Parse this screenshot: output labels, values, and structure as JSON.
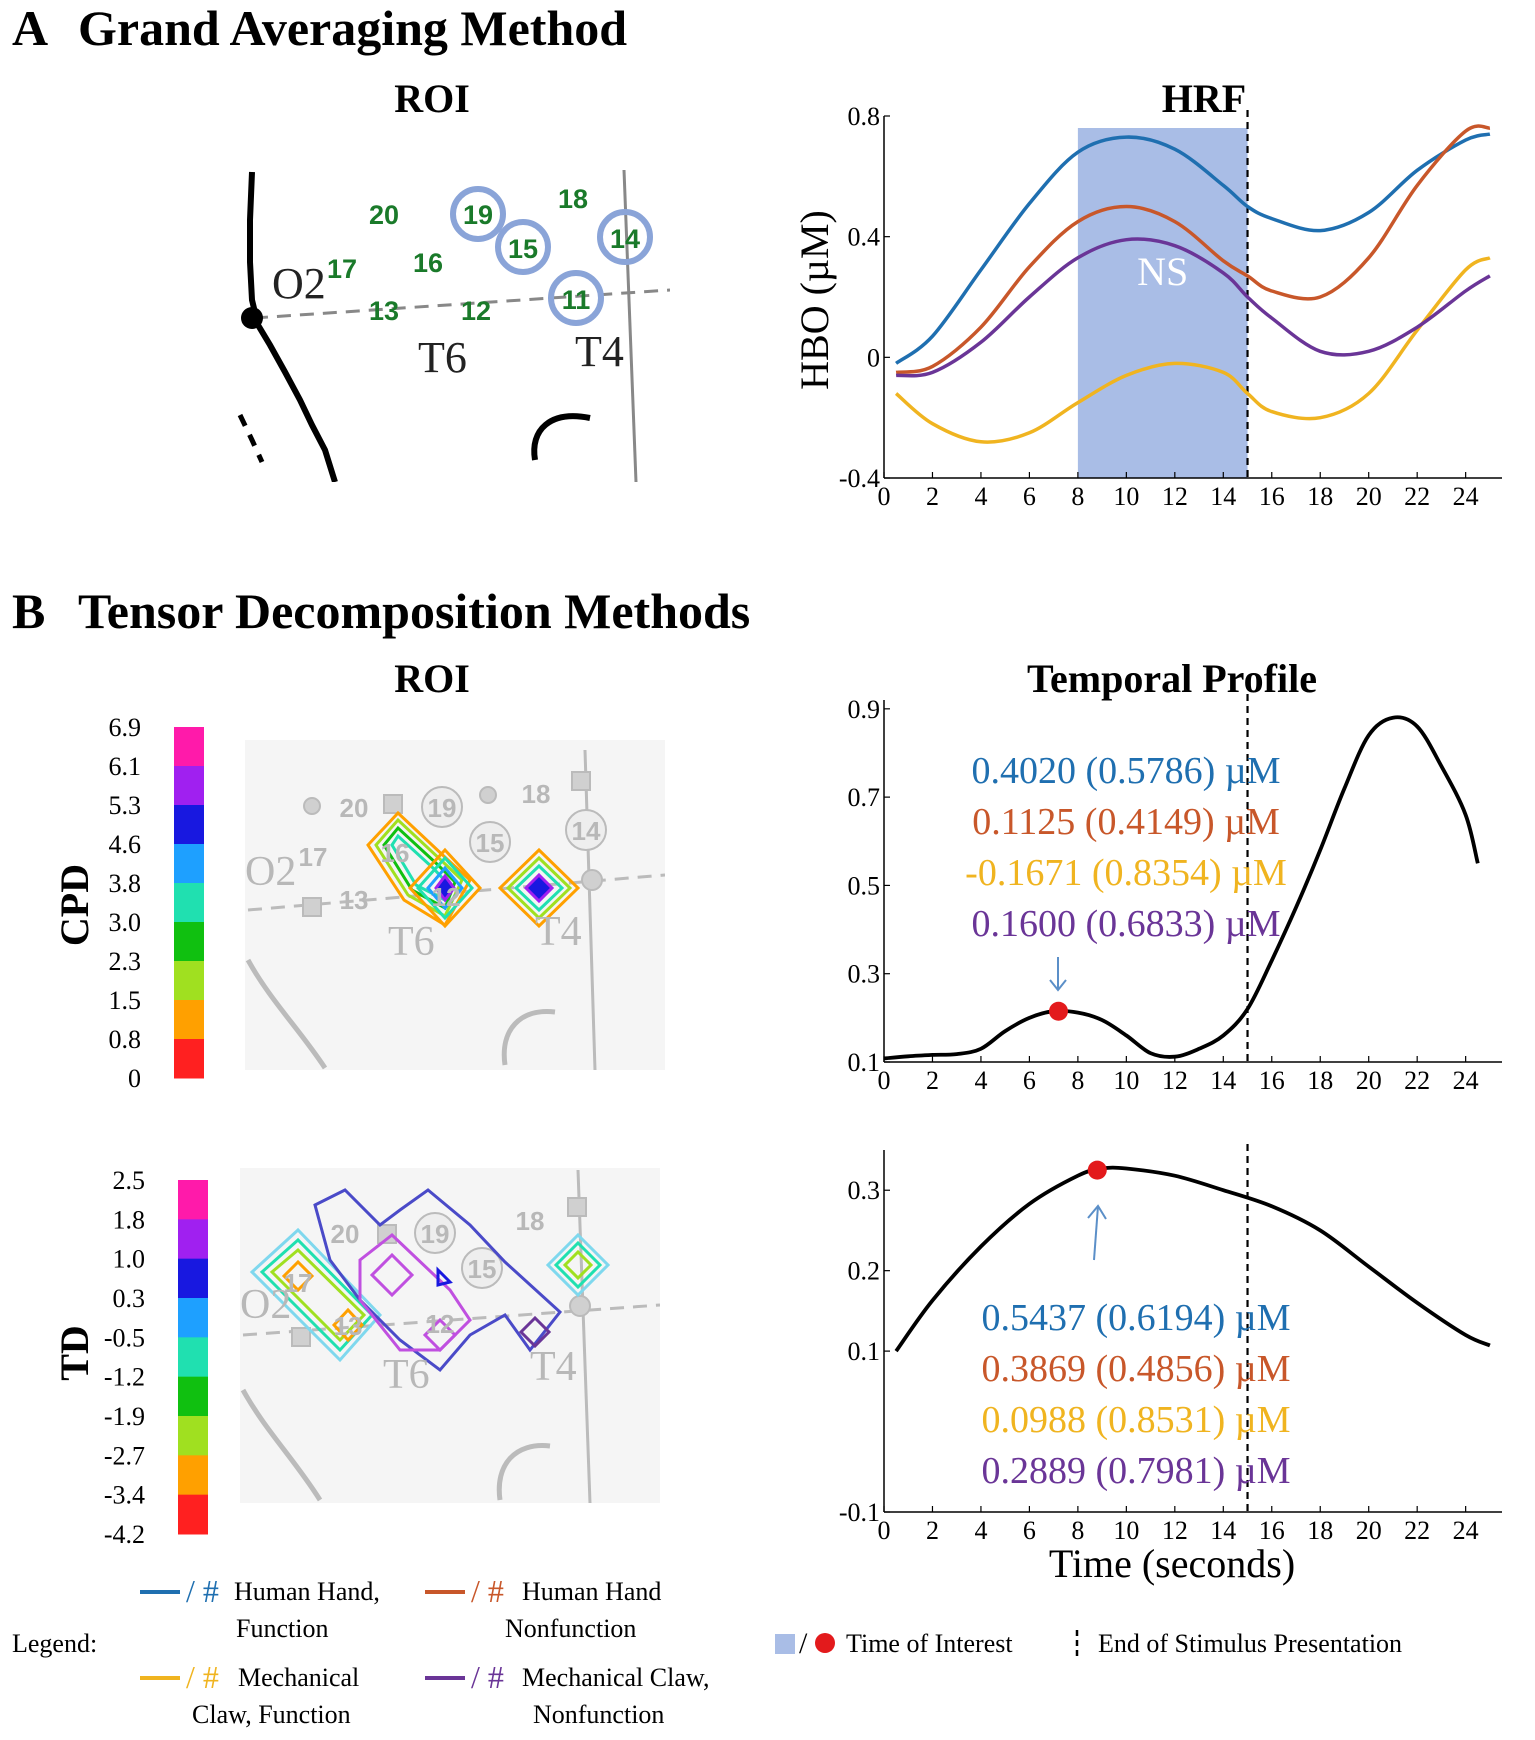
{
  "panel_a": {
    "letter": "A",
    "title": "Grand Averaging Method",
    "roi_title": "ROI",
    "roi_map": {
      "channels": [
        "20",
        "19",
        "18",
        "17",
        "16",
        "15",
        "14",
        "13",
        "12",
        "11"
      ],
      "circled_channels": [
        "19",
        "15",
        "14",
        "11"
      ],
      "landmarks": [
        "O2",
        "T6",
        "T4"
      ]
    },
    "hrf_title": "HRF",
    "ylabel": "HBO (µM)",
    "ns_label": "NS"
  },
  "panel_b": {
    "letter": "B",
    "title": "Tensor Decomposition Methods",
    "roi_title": "ROI",
    "temporal_title": "Temporal Profile",
    "cpd_label": "CPD",
    "td_label": "TD",
    "cpd_colorbar": [
      "6.9",
      "6.1",
      "5.3",
      "4.6",
      "3.8",
      "3.0",
      "2.3",
      "1.5",
      "0.8",
      "0"
    ],
    "td_colorbar": [
      "2.5",
      "1.8",
      "1.0",
      "0.3",
      "-0.5",
      "-1.2",
      "-1.9",
      "-2.7",
      "-3.4",
      "-4.2"
    ],
    "colorbar_colors": [
      "#ff1aaa",
      "#a020f0",
      "#1818e0",
      "#1ea0ff",
      "#20e0b0",
      "#10c010",
      "#a0e020",
      "#ffa000",
      "#ff2020"
    ],
    "cpd_roi_map": {
      "channels": [
        "20",
        "19",
        "18",
        "17",
        "16",
        "15",
        "14",
        "13",
        "12"
      ],
      "landmarks": [
        "O2",
        "T6",
        "T4"
      ]
    },
    "td_roi_map": {
      "channels": [
        "20",
        "19",
        "18",
        "17",
        "15",
        "13",
        "12"
      ],
      "landmarks": [
        "O2",
        "T6",
        "T4"
      ]
    },
    "cpd_values": [
      {
        "text": "0.4020 (0.5786) µM",
        "color": "#1f6fb0"
      },
      {
        "text": "0.1125 (0.4149) µM",
        "color": "#c8572a"
      },
      {
        "text": "-0.1671 (0.8354) µM",
        "color": "#f0b420"
      },
      {
        "text": "0.1600 (0.6833) µM",
        "color": "#6a3597"
      }
    ],
    "td_values": [
      {
        "text": "0.5437 (0.6194) µM",
        "color": "#1f6fb0"
      },
      {
        "text": "0.3869 (0.4856) µM",
        "color": "#c8572a"
      },
      {
        "text": "0.0988 (0.8531) µM",
        "color": "#f0b420"
      },
      {
        "text": "0.2889 (0.7981) µM",
        "color": "#6a3597"
      }
    ],
    "xlabel": "Time (seconds)"
  },
  "legend": {
    "label": "Legend:",
    "items": [
      {
        "symbol": "/ #",
        "line1": "Human Hand,",
        "line2": "Function",
        "color": "#1f6fb0"
      },
      {
        "symbol": "/ #",
        "line1": "Human Hand",
        "line2": "Nonfunction",
        "color": "#c8572a"
      },
      {
        "symbol": "/ #",
        "line1": "Mechanical",
        "line2": "Claw, Function",
        "color": "#f0b420"
      },
      {
        "symbol": "/ #",
        "line1": "Mechanical Claw,",
        "line2": "Nonfunction",
        "color": "#6a3597"
      }
    ],
    "time_of_interest": "Time of Interest",
    "end_stimulus": "End of Stimulus Presentation",
    "toi_patch_color": "#a9bde6",
    "toi_dot_color": "#e31a1c"
  },
  "chart_data": [
    {
      "type": "line",
      "title": "HRF",
      "xlabel": "",
      "ylabel": "HBO (µM)",
      "xlim": [
        0,
        25.5
      ],
      "ylim": [
        -0.4,
        0.8
      ],
      "xticks": [
        "0",
        "2",
        "4",
        "6",
        "8",
        "10",
        "12",
        "14",
        "16",
        "18",
        "20",
        "22",
        "24"
      ],
      "yticks": [
        "0.8",
        "0.4",
        "0",
        "-0.4"
      ],
      "shaded_region": {
        "x": [
          8,
          15
        ],
        "label": "NS"
      },
      "vline": 15,
      "x": [
        0.5,
        2,
        4,
        6,
        8,
        10,
        12,
        14,
        15,
        16,
        18,
        20,
        22,
        24,
        25
      ],
      "series": [
        {
          "name": "Human Hand, Function",
          "color": "#1f6fb0",
          "values": [
            -0.02,
            0.07,
            0.29,
            0.51,
            0.68,
            0.73,
            0.69,
            0.57,
            0.5,
            0.46,
            0.42,
            0.48,
            0.62,
            0.72,
            0.74
          ]
        },
        {
          "name": "Human Hand Nonfunction",
          "color": "#c8572a",
          "values": [
            -0.05,
            -0.03,
            0.1,
            0.3,
            0.45,
            0.5,
            0.45,
            0.32,
            0.27,
            0.22,
            0.2,
            0.33,
            0.57,
            0.75,
            0.76
          ]
        },
        {
          "name": "Mechanical Claw, Function",
          "color": "#f0b420",
          "values": [
            -0.12,
            -0.22,
            -0.28,
            -0.25,
            -0.15,
            -0.06,
            -0.02,
            -0.05,
            -0.12,
            -0.18,
            -0.2,
            -0.12,
            0.09,
            0.29,
            0.33
          ]
        },
        {
          "name": "Mechanical Claw, Nonfunction",
          "color": "#6a3597",
          "values": [
            -0.06,
            -0.05,
            0.05,
            0.2,
            0.33,
            0.39,
            0.37,
            0.28,
            0.2,
            0.13,
            0.02,
            0.02,
            0.1,
            0.22,
            0.27
          ]
        }
      ]
    },
    {
      "type": "line",
      "title": "Temporal Profile",
      "xlabel": "",
      "ylabel": "",
      "xlim": [
        0,
        25.5
      ],
      "ylim": [
        0.1,
        0.92
      ],
      "xticks": [
        "0",
        "2",
        "4",
        "6",
        "8",
        "10",
        "12",
        "14",
        "16",
        "18",
        "20",
        "22",
        "24"
      ],
      "yticks": [
        "0.9",
        "0.7",
        "0.5",
        "0.3",
        "0.1"
      ],
      "vline": 15,
      "marker": {
        "x": 7.2,
        "y": 0.215
      },
      "x": [
        0,
        1,
        2,
        3,
        4,
        5,
        6,
        7,
        8,
        9,
        10,
        11,
        12,
        13,
        14,
        15,
        16,
        17,
        18,
        19,
        20,
        21,
        22,
        23,
        24,
        24.5
      ],
      "series": [
        {
          "name": "CPD",
          "color": "#000000",
          "values": [
            0.108,
            0.113,
            0.116,
            0.118,
            0.13,
            0.17,
            0.2,
            0.215,
            0.212,
            0.195,
            0.16,
            0.12,
            0.112,
            0.13,
            0.16,
            0.22,
            0.33,
            0.45,
            0.58,
            0.72,
            0.84,
            0.88,
            0.86,
            0.77,
            0.66,
            0.55
          ]
        }
      ]
    },
    {
      "type": "line",
      "title": "",
      "xlabel": "Time (seconds)",
      "ylabel": "",
      "xlim": [
        0,
        25.5
      ],
      "ylim": [
        -0.1,
        0.35
      ],
      "xticks": [
        "0",
        "2",
        "4",
        "6",
        "8",
        "10",
        "12",
        "14",
        "16",
        "18",
        "20",
        "22",
        "24"
      ],
      "yticks": [
        "0.3",
        "0.2",
        "0.1",
        "-0.1"
      ],
      "vline": 15,
      "marker": {
        "x": 8.8,
        "y": 0.325
      },
      "x": [
        0.5,
        2,
        4,
        6,
        8,
        9,
        10,
        12,
        14,
        16,
        18,
        20,
        22,
        24,
        25
      ],
      "series": [
        {
          "name": "TD",
          "color": "#000000",
          "values": [
            0.1,
            0.163,
            0.23,
            0.283,
            0.318,
            0.327,
            0.327,
            0.318,
            0.3,
            0.28,
            0.25,
            0.205,
            0.16,
            0.12,
            0.107
          ]
        }
      ]
    }
  ]
}
